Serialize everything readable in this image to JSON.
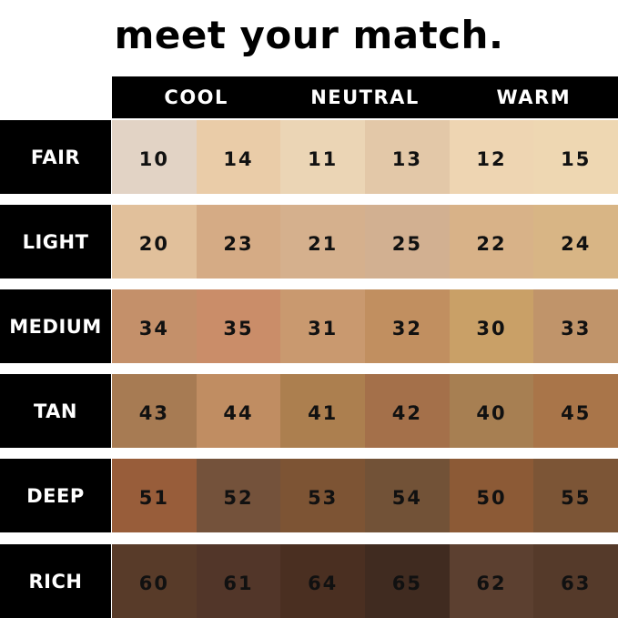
{
  "title": "meet your match.",
  "columns": [
    "COOL",
    "NEUTRAL",
    "WARM"
  ],
  "rows": [
    {
      "label": "FAIR",
      "shades": [
        {
          "num": "10",
          "color": "#e2d3c5"
        },
        {
          "num": "14",
          "color": "#eacca8"
        },
        {
          "num": "11",
          "color": "#ebd5b5"
        },
        {
          "num": "13",
          "color": "#e3c8a8"
        },
        {
          "num": "12",
          "color": "#eed5b2"
        },
        {
          "num": "15",
          "color": "#eed7b2"
        }
      ]
    },
    {
      "label": "LIGHT",
      "shades": [
        {
          "num": "20",
          "color": "#e1c09b"
        },
        {
          "num": "23",
          "color": "#d5ab85"
        },
        {
          "num": "21",
          "color": "#d5b08d"
        },
        {
          "num": "25",
          "color": "#d2b091"
        },
        {
          "num": "22",
          "color": "#d8b288"
        },
        {
          "num": "24",
          "color": "#d8b585"
        }
      ]
    },
    {
      "label": "MEDIUM",
      "shades": [
        {
          "num": "34",
          "color": "#c4906a"
        },
        {
          "num": "35",
          "color": "#ca8d69"
        },
        {
          "num": "31",
          "color": "#c9996f"
        },
        {
          "num": "32",
          "color": "#c18f60"
        },
        {
          "num": "30",
          "color": "#c9a067"
        },
        {
          "num": "33",
          "color": "#c0946a"
        }
      ]
    },
    {
      "label": "TAN",
      "shades": [
        {
          "num": "43",
          "color": "#a77b53"
        },
        {
          "num": "44",
          "color": "#c08d62"
        },
        {
          "num": "41",
          "color": "#ac7f4f"
        },
        {
          "num": "42",
          "color": "#a4704a"
        },
        {
          "num": "40",
          "color": "#a77f52"
        },
        {
          "num": "45",
          "color": "#a97549"
        }
      ]
    },
    {
      "label": "DEEP",
      "shades": [
        {
          "num": "51",
          "color": "#985d3a"
        },
        {
          "num": "52",
          "color": "#74523b"
        },
        {
          "num": "53",
          "color": "#7d5434"
        },
        {
          "num": "54",
          "color": "#725237"
        },
        {
          "num": "50",
          "color": "#8c5a36"
        },
        {
          "num": "55",
          "color": "#7c5536"
        }
      ]
    },
    {
      "label": "RICH",
      "shades": [
        {
          "num": "60",
          "color": "#583b29"
        },
        {
          "num": "61",
          "color": "#523629"
        },
        {
          "num": "64",
          "color": "#4a2f21"
        },
        {
          "num": "65",
          "color": "#402b20"
        },
        {
          "num": "62",
          "color": "#5c4030"
        },
        {
          "num": "63",
          "color": "#553a2a"
        }
      ]
    }
  ]
}
